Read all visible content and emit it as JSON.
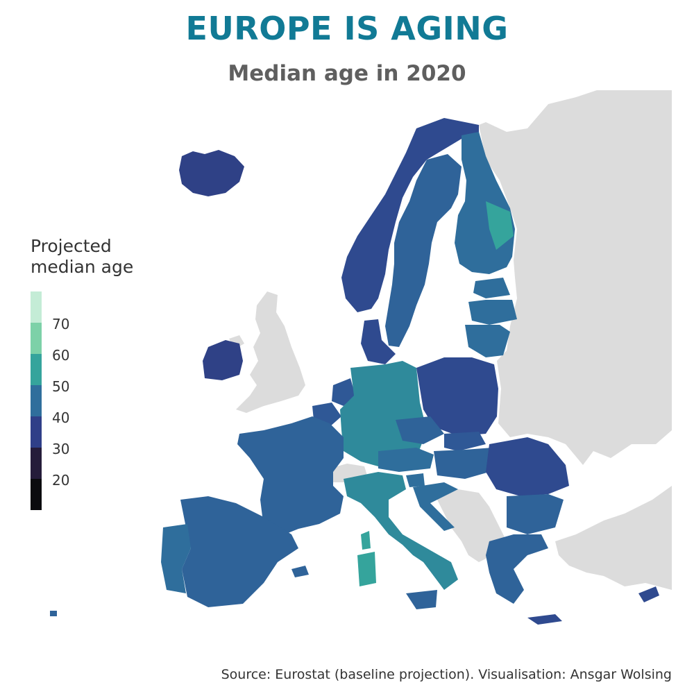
{
  "title": "EUROPE IS AGING",
  "subtitle": "Median age in 2020",
  "legend": {
    "title_line1": "Projected",
    "title_line2": "median age",
    "ticks": [
      "70",
      "60",
      "50",
      "40",
      "30",
      "20"
    ],
    "bins": [
      {
        "range": "75-80",
        "color": "#c4ecd6"
      },
      {
        "range": "65-75",
        "color": "#7dd1a8"
      },
      {
        "range": "55-65",
        "color": "#35a49c"
      },
      {
        "range": "45-55",
        "color": "#2f6e9c"
      },
      {
        "range": "35-45",
        "color": "#2f3f88"
      },
      {
        "range": "25-35",
        "color": "#251c3a"
      },
      {
        "range": "15-25",
        "color": "#0b0b0e"
      }
    ]
  },
  "colors": {
    "title": "#117a95",
    "non_eu_land": "#dcdcdc",
    "eu_dark": "#2e4a8f",
    "eu_mid": "#2f6e9c",
    "eu_teal": "#35a49c"
  },
  "source": "Source: Eurostat (baseline projection). Visualisation: Ansgar Wolsing"
}
